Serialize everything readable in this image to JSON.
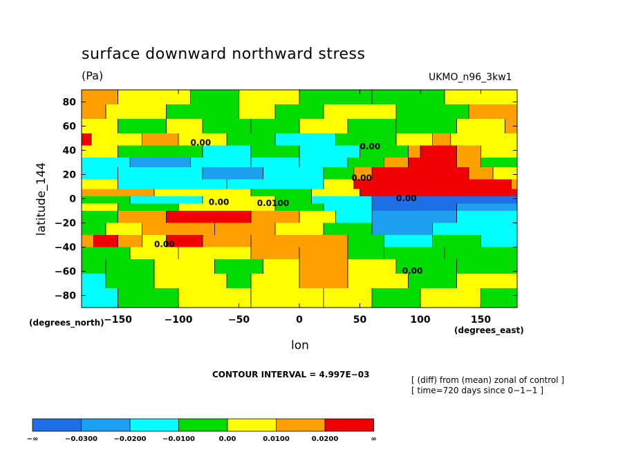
{
  "chart_data": {
    "type": "heatmap",
    "title": "surface downward northward stress",
    "units": "(Pa)",
    "model": "UKMO_n96_3kw1",
    "xlabel": "lon",
    "ylabel": "latitude_144",
    "x_unit_note": "(degrees_east)",
    "y_unit_note": "(degrees_north)",
    "xlim": [
      -180,
      180
    ],
    "ylim": [
      -90,
      90
    ],
    "x_ticks": [
      -150,
      -100,
      -50,
      0,
      50,
      100,
      150
    ],
    "y_ticks": [
      80,
      60,
      40,
      20,
      0,
      -20,
      -40,
      -60,
      -80
    ],
    "x_tick_labels": [
      "−150",
      "−100",
      "−50",
      "0",
      "50",
      "100",
      "150"
    ],
    "y_tick_labels": [
      "80",
      "60",
      "40",
      "20",
      "0",
      "−20",
      "−40",
      "−60",
      "−80"
    ],
    "contour_interval_text": "CONTOUR INTERVAL = 4.997E−03",
    "description_lines": [
      "[ (diff) from (mean) zonal of control ]",
      "[ time=720 days since 0−1−1 ]"
    ],
    "contour_labels": [
      {
        "text": "0.00",
        "lon": -90,
        "lat": 44
      },
      {
        "text": "0.00",
        "lon": 50,
        "lat": 41
      },
      {
        "text": "0.00",
        "lon": 43,
        "lat": 15
      },
      {
        "text": "0.00",
        "lon": -75,
        "lat": -5
      },
      {
        "text": "0.0100",
        "lon": -35,
        "lat": -6
      },
      {
        "text": "0.00",
        "lon": 80,
        "lat": -2
      },
      {
        "text": "0.00",
        "lon": -120,
        "lat": -40
      },
      {
        "text": "0.00",
        "lon": 85,
        "lat": -62
      }
    ],
    "legend": {
      "bins": [
        {
          "color": "#1e6ee6",
          "label": "−0.0300"
        },
        {
          "color": "#1ea0f0",
          "label": "−0.0200"
        },
        {
          "color": "#00ffff",
          "label": "−0.0100"
        },
        {
          "color": "#00dc00",
          "label": "0.00"
        },
        {
          "color": "#ffff00",
          "label": "0.0100"
        },
        {
          "color": "#ffa000",
          "label": "0.0200"
        },
        {
          "color": "#f00000",
          "label": "∞"
        }
      ],
      "low_end_label": "−∞"
    },
    "bands": [
      {
        "lat": [
          90,
          78
        ],
        "segments": [
          [
            -180,
            -150,
            "#ffa000"
          ],
          [
            -150,
            -90,
            "#ffff00"
          ],
          [
            -90,
            -50,
            "#00dc00"
          ],
          [
            -50,
            0,
            "#ffff00"
          ],
          [
            0,
            60,
            "#00dc00"
          ],
          [
            60,
            120,
            "#00dc00"
          ],
          [
            120,
            180,
            "#ffff00"
          ]
        ]
      },
      {
        "lat": [
          78,
          66
        ],
        "segments": [
          [
            -180,
            -160,
            "#ffa000"
          ],
          [
            -160,
            -110,
            "#ffff00"
          ],
          [
            -110,
            -50,
            "#00dc00"
          ],
          [
            -50,
            -20,
            "#ffff00"
          ],
          [
            -20,
            20,
            "#00dc00"
          ],
          [
            20,
            80,
            "#ffff00"
          ],
          [
            80,
            140,
            "#00dc00"
          ],
          [
            140,
            180,
            "#ffa000"
          ]
        ]
      },
      {
        "lat": [
          66,
          54
        ],
        "segments": [
          [
            -180,
            -150,
            "#ffff00"
          ],
          [
            -150,
            -110,
            "#00dc00"
          ],
          [
            -110,
            -80,
            "#ffff00"
          ],
          [
            -80,
            -40,
            "#00dc00"
          ],
          [
            -40,
            0,
            "#00dc00"
          ],
          [
            0,
            40,
            "#ffff00"
          ],
          [
            40,
            80,
            "#00dc00"
          ],
          [
            80,
            130,
            "#00dc00"
          ],
          [
            130,
            170,
            "#ffff00"
          ],
          [
            170,
            180,
            "#ffa000"
          ]
        ]
      },
      {
        "lat": [
          54,
          44
        ],
        "segments": [
          [
            -180,
            -172,
            "#f00000"
          ],
          [
            -172,
            -130,
            "#ffff00"
          ],
          [
            -130,
            -100,
            "#ffa000"
          ],
          [
            -100,
            -60,
            "#ffff00"
          ],
          [
            -60,
            -20,
            "#00dc00"
          ],
          [
            -20,
            30,
            "#00ffff"
          ],
          [
            30,
            80,
            "#00dc00"
          ],
          [
            80,
            110,
            "#ffff00"
          ],
          [
            110,
            125,
            "#ffa000"
          ],
          [
            125,
            180,
            "#ffff00"
          ]
        ]
      },
      {
        "lat": [
          44,
          34
        ],
        "segments": [
          [
            -180,
            -150,
            "#ffff00"
          ],
          [
            -150,
            -80,
            "#00dc00"
          ],
          [
            -80,
            -40,
            "#00ffff"
          ],
          [
            -40,
            0,
            "#00dc00"
          ],
          [
            0,
            50,
            "#00ffff"
          ],
          [
            50,
            90,
            "#00dc00"
          ],
          [
            90,
            100,
            "#ffa000"
          ],
          [
            100,
            130,
            "#f00000"
          ],
          [
            130,
            150,
            "#ffa000"
          ],
          [
            150,
            180,
            "#ffff00"
          ]
        ]
      },
      {
        "lat": [
          34,
          26
        ],
        "segments": [
          [
            -180,
            -140,
            "#00ffff"
          ],
          [
            -140,
            -90,
            "#1ea0f0"
          ],
          [
            -90,
            -40,
            "#00ffff"
          ],
          [
            -40,
            0,
            "#00ffff"
          ],
          [
            0,
            40,
            "#00ffff"
          ],
          [
            40,
            70,
            "#00dc00"
          ],
          [
            70,
            90,
            "#ffa000"
          ],
          [
            90,
            130,
            "#f00000"
          ],
          [
            130,
            150,
            "#ffa000"
          ],
          [
            150,
            180,
            "#00dc00"
          ]
        ]
      },
      {
        "lat": [
          26,
          16
        ],
        "segments": [
          [
            -180,
            -150,
            "#00ffff"
          ],
          [
            -150,
            -80,
            "#00ffff"
          ],
          [
            -80,
            -30,
            "#1ea0f0"
          ],
          [
            -30,
            20,
            "#00ffff"
          ],
          [
            20,
            45,
            "#00dc00"
          ],
          [
            45,
            60,
            "#ffa000"
          ],
          [
            60,
            140,
            "#f00000"
          ],
          [
            140,
            160,
            "#ffa000"
          ],
          [
            160,
            180,
            "#ffff00"
          ]
        ]
      },
      {
        "lat": [
          16,
          8
        ],
        "segments": [
          [
            -180,
            -150,
            "#ffff00"
          ],
          [
            -150,
            -60,
            "#00ffff"
          ],
          [
            -60,
            20,
            "#00ffff"
          ],
          [
            20,
            45,
            "#ffff00"
          ],
          [
            45,
            175,
            "#f00000"
          ],
          [
            175,
            180,
            "#ffa000"
          ]
        ]
      },
      {
        "lat": [
          8,
          2
        ],
        "segments": [
          [
            -180,
            -120,
            "#ffa000"
          ],
          [
            -120,
            -40,
            "#ffff00"
          ],
          [
            -40,
            10,
            "#00dc00"
          ],
          [
            10,
            50,
            "#ffff00"
          ],
          [
            50,
            180,
            "#f00000"
          ]
        ]
      },
      {
        "lat": [
          2,
          -4
        ],
        "segments": [
          [
            -180,
            -140,
            "#00dc00"
          ],
          [
            -140,
            -80,
            "#00ffff"
          ],
          [
            -80,
            -20,
            "#ffff00"
          ],
          [
            -20,
            10,
            "#00dc00"
          ],
          [
            10,
            60,
            "#00ffff"
          ],
          [
            60,
            180,
            "#1e6ee6"
          ]
        ]
      },
      {
        "lat": [
          -4,
          -10
        ],
        "segments": [
          [
            -180,
            -150,
            "#ffff00"
          ],
          [
            -150,
            -100,
            "#00dc00"
          ],
          [
            -100,
            -20,
            "#ffff00"
          ],
          [
            -20,
            20,
            "#00dc00"
          ],
          [
            20,
            60,
            "#00ffff"
          ],
          [
            60,
            130,
            "#1e6ee6"
          ],
          [
            130,
            180,
            "#1ea0f0"
          ]
        ]
      },
      {
        "lat": [
          -10,
          -20
        ],
        "segments": [
          [
            -180,
            -150,
            "#00dc00"
          ],
          [
            -150,
            -110,
            "#ffa000"
          ],
          [
            -110,
            -40,
            "#f00000"
          ],
          [
            -40,
            0,
            "#ffa000"
          ],
          [
            0,
            30,
            "#ffff00"
          ],
          [
            30,
            60,
            "#00ffff"
          ],
          [
            60,
            130,
            "#1ea0f0"
          ],
          [
            130,
            180,
            "#00ffff"
          ]
        ]
      },
      {
        "lat": [
          -20,
          -30
        ],
        "segments": [
          [
            -180,
            -160,
            "#00dc00"
          ],
          [
            -160,
            -130,
            "#ffff00"
          ],
          [
            -130,
            -70,
            "#ffa000"
          ],
          [
            -70,
            -20,
            "#ffa000"
          ],
          [
            -20,
            20,
            "#ffff00"
          ],
          [
            20,
            60,
            "#00dc00"
          ],
          [
            60,
            110,
            "#1ea0f0"
          ],
          [
            110,
            180,
            "#00ffff"
          ]
        ]
      },
      {
        "lat": [
          -30,
          -40
        ],
        "segments": [
          [
            -180,
            -170,
            "#ffa000"
          ],
          [
            -170,
            -150,
            "#f00000"
          ],
          [
            -150,
            -130,
            "#ffa000"
          ],
          [
            -130,
            -110,
            "#ffff00"
          ],
          [
            -110,
            -80,
            "#f00000"
          ],
          [
            -80,
            -40,
            "#ffa000"
          ],
          [
            -40,
            40,
            "#ffa000"
          ],
          [
            40,
            70,
            "#00dc00"
          ],
          [
            70,
            110,
            "#00ffff"
          ],
          [
            110,
            150,
            "#00dc00"
          ],
          [
            150,
            180,
            "#00ffff"
          ]
        ]
      },
      {
        "lat": [
          -40,
          -50
        ],
        "segments": [
          [
            -180,
            -140,
            "#00dc00"
          ],
          [
            -140,
            -100,
            "#ffff00"
          ],
          [
            -100,
            -40,
            "#ffff00"
          ],
          [
            -40,
            0,
            "#ffa000"
          ],
          [
            0,
            40,
            "#ffa000"
          ],
          [
            40,
            70,
            "#00dc00"
          ],
          [
            70,
            120,
            "#00dc00"
          ],
          [
            120,
            180,
            "#00dc00"
          ]
        ]
      },
      {
        "lat": [
          -50,
          -62
        ],
        "segments": [
          [
            -180,
            -160,
            "#00dc00"
          ],
          [
            -160,
            -120,
            "#00dc00"
          ],
          [
            -120,
            -70,
            "#ffff00"
          ],
          [
            -70,
            -30,
            "#00dc00"
          ],
          [
            -30,
            0,
            "#ffff00"
          ],
          [
            0,
            40,
            "#ffa000"
          ],
          [
            40,
            80,
            "#ffff00"
          ],
          [
            80,
            130,
            "#00dc00"
          ],
          [
            130,
            180,
            "#00dc00"
          ]
        ]
      },
      {
        "lat": [
          -62,
          -74
        ],
        "segments": [
          [
            -180,
            -160,
            "#00ffff"
          ],
          [
            -160,
            -120,
            "#00dc00"
          ],
          [
            -120,
            -60,
            "#ffff00"
          ],
          [
            -60,
            -40,
            "#00dc00"
          ],
          [
            -40,
            0,
            "#ffff00"
          ],
          [
            0,
            40,
            "#ffa000"
          ],
          [
            40,
            90,
            "#ffff00"
          ],
          [
            90,
            130,
            "#00dc00"
          ],
          [
            130,
            180,
            "#ffff00"
          ]
        ]
      },
      {
        "lat": [
          -74,
          -90
        ],
        "segments": [
          [
            -180,
            -150,
            "#00ffff"
          ],
          [
            -150,
            -100,
            "#00dc00"
          ],
          [
            -100,
            -40,
            "#ffff00"
          ],
          [
            -40,
            20,
            "#ffff00"
          ],
          [
            20,
            60,
            "#ffff00"
          ],
          [
            60,
            100,
            "#00dc00"
          ],
          [
            100,
            150,
            "#ffff00"
          ],
          [
            150,
            180,
            "#00dc00"
          ]
        ]
      }
    ]
  },
  "colors": {
    "background": "#ffffff",
    "frame": "#000000",
    "contour": "#000000"
  }
}
